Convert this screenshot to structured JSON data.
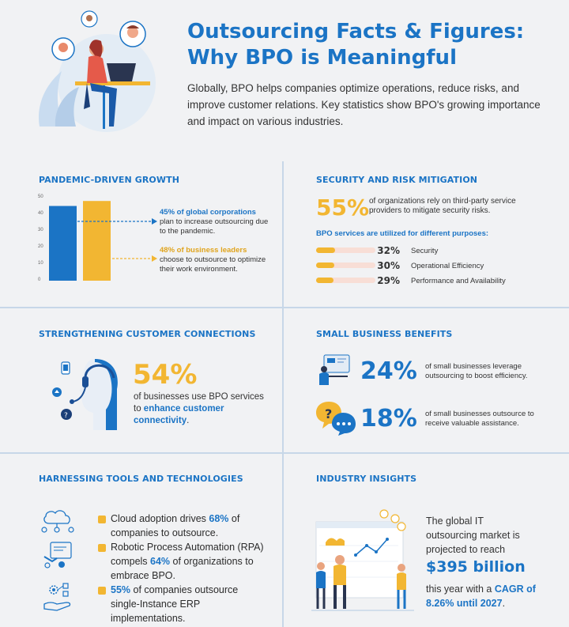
{
  "header": {
    "title_line1": "Outsourcing Facts & Figures:",
    "title_line2": "Why BPO is Meaningful",
    "intro": "Globally, BPO helps companies optimize operations, reduce risks, and improve customer relations. Key statistics show BPO's growing importance and impact on various industries."
  },
  "pandemic": {
    "heading": "PANDEMIC-DRIVEN GROWTH",
    "ticks": [
      "50",
      "40",
      "30",
      "20",
      "10",
      "0"
    ],
    "note1_bold": "45% of global corporations",
    "note1_rest": "plan to increase outsourcing due to the pandemic.",
    "note2_bold": "48% of business leaders",
    "note2_rest": "choose to outsource to optimize their work environment."
  },
  "chart_data": {
    "type": "bar",
    "categories": [
      "",
      ""
    ],
    "values": [
      45,
      48
    ],
    "ylim": [
      0,
      50
    ],
    "colors": [
      "#1b74c5",
      "#f2b632"
    ]
  },
  "security": {
    "heading": "SECURITY AND RISK MITIGATION",
    "big": "55%",
    "big_text": "of organizations rely on third-party service providers to mitigate security risks.",
    "sub_heading": "BPO services are utilized for different purposes:",
    "items": [
      {
        "pct": "32%",
        "value": 32,
        "label": "Security"
      },
      {
        "pct": "30%",
        "value": 30,
        "label": "Operational Efficiency"
      },
      {
        "pct": "29%",
        "value": 29,
        "label": "Performance and Availability"
      }
    ]
  },
  "customer": {
    "heading": "STRENGTHENING CUSTOMER CONNECTIONS",
    "big": "54%",
    "text_a": "of businesses use BPO services to ",
    "text_b": "enhance customer connectivity",
    "text_c": "."
  },
  "small_biz": {
    "heading": "SMALL BUSINESS BENEFITS",
    "stat1": "24%",
    "text1": "of small businesses leverage outsourcing to boost efficiency.",
    "stat2": "18%",
    "text2": "of small businesses outsource to receive valuable assistance."
  },
  "tools": {
    "heading": "HARNESSING TOOLS AND TECHNOLOGIES",
    "b1a": "Cloud adoption drives ",
    "b1b": "68%",
    "b1c": " of companies to outsource.",
    "b2a": "Robotic Process Automation (RPA) compels ",
    "b2b": "64%",
    "b2c": " of organizations to embrace BPO.",
    "b3a": "55%",
    "b3b": " of companies outsource single-Instance ERP implementations."
  },
  "industry": {
    "heading": "INDUSTRY INSIGHTS",
    "text1": "The global IT outsourcing market is projected to reach",
    "big": "$395 billion",
    "text2a": "this year with a ",
    "text2b": "CAGR of 8.26% until 2027",
    "text2c": "."
  }
}
